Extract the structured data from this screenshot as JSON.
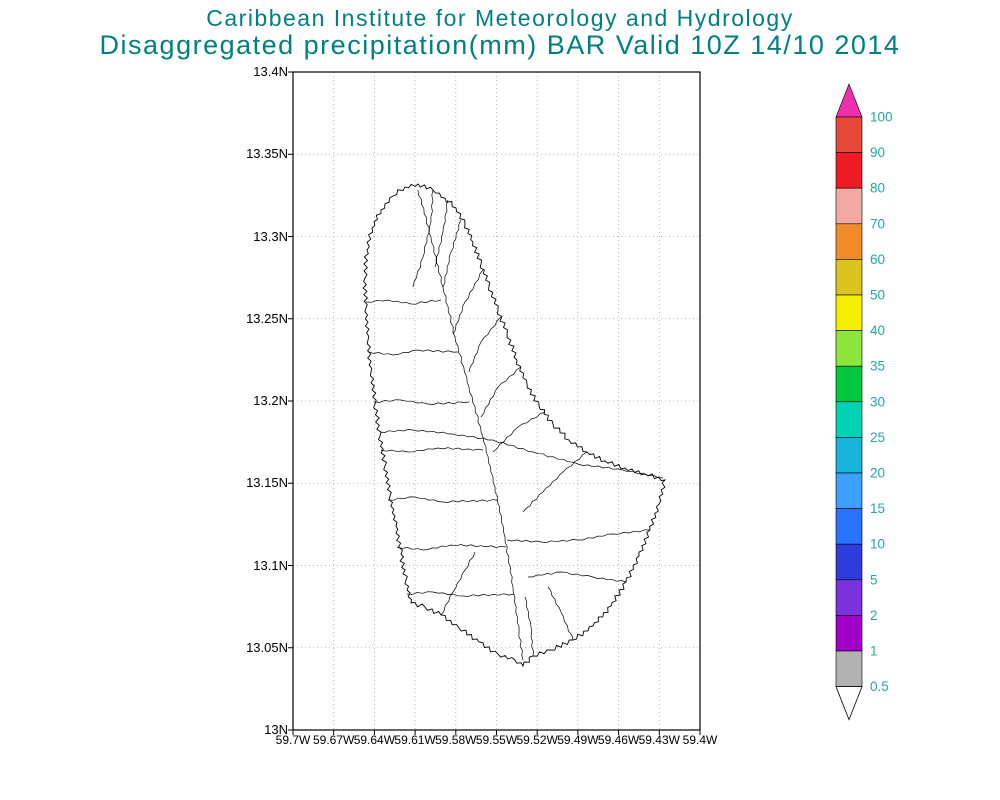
{
  "header": {
    "line1": "Caribbean Institute for Meteorology and Hydrology",
    "line2": "Disaggregated precipitation(mm) BAR Valid 10Z 14/10 2014",
    "title_color": "#008080"
  },
  "map": {
    "region_code": "BAR",
    "y_axis_labels": [
      "13.4N",
      "13.35N",
      "13.3N",
      "13.25N",
      "13.2N",
      "13.15N",
      "13.1N",
      "13.05N",
      "13N"
    ],
    "x_axis_labels": [
      "59.7W",
      "59.67W",
      "59.64W",
      "59.61W",
      "59.58W",
      "59.55W",
      "59.52W",
      "59.49W",
      "59.46W",
      "59.43W",
      "59.4W"
    ],
    "grid_color": "#a8a8a8",
    "border_color": "#000000",
    "coast_color": "#000000"
  },
  "colorbar": {
    "tick_labels_top_to_bottom": [
      "100",
      "90",
      "80",
      "70",
      "60",
      "50",
      "40",
      "35",
      "30",
      "25",
      "20",
      "15",
      "10",
      "5",
      "2",
      "1",
      "0.5"
    ],
    "segment_colors_top_to_bottom": [
      "#e8483a",
      "#ed1c24",
      "#f2a9a2",
      "#f28c28",
      "#dcc41e",
      "#f4f000",
      "#8ce63c",
      "#00c83c",
      "#00d2b4",
      "#18b4dc",
      "#3ca0ff",
      "#2873ff",
      "#2f3cdc",
      "#7a32dc",
      "#a000c8",
      "#b2b2b2"
    ],
    "above_max_color": "#ee2fae",
    "below_min_color": "#ffffff",
    "label_color": "#22a7a7",
    "units": "mm"
  }
}
